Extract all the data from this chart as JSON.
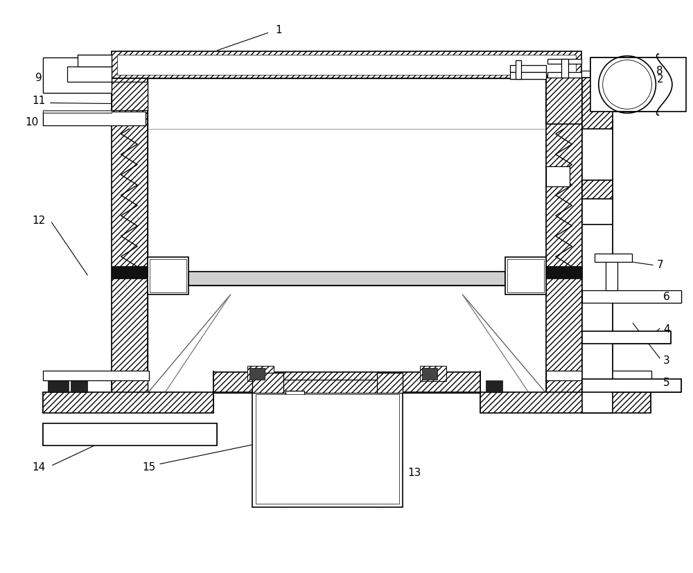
{
  "bg_color": "#ffffff",
  "line_color": "#000000",
  "fig_width": 10.0,
  "fig_height": 8.27,
  "font_size": 11,
  "lw_main": 1.2,
  "lw_med": 0.9,
  "lw_thin": 0.6
}
